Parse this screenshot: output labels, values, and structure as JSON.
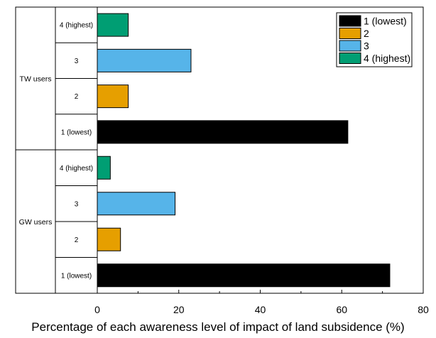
{
  "chart_data": {
    "type": "bar",
    "orientation": "horizontal",
    "title": "",
    "xlabel": "Percentage of each awareness level of impact of land subsidence (%)",
    "ylabel": "",
    "xlim": [
      0,
      80
    ],
    "x_ticks": [
      "0",
      "20",
      "40",
      "60",
      "80"
    ],
    "grid": false,
    "legend_placement": "top-right",
    "categories": [
      "4 (highest)",
      "3",
      "2",
      "1 (lowest)"
    ],
    "groups": [
      {
        "name": "TW users",
        "bars": [
          {
            "category": "4 (highest)",
            "value": 7.6
          },
          {
            "category": "3",
            "value": 23.0
          },
          {
            "category": "2",
            "value": 7.6
          },
          {
            "category": "1 (lowest)",
            "value": 61.5
          }
        ]
      },
      {
        "name": "GW users",
        "bars": [
          {
            "category": "4 (highest)",
            "value": 3.2
          },
          {
            "category": "3",
            "value": 19.1
          },
          {
            "category": "2",
            "value": 5.7
          },
          {
            "category": "1 (lowest)",
            "value": 71.8
          }
        ]
      }
    ],
    "legend": [
      {
        "label": "1 (lowest)",
        "color": "#000000"
      },
      {
        "label": "2",
        "color": "#E69F00"
      },
      {
        "label": "3",
        "color": "#56B4E9"
      },
      {
        "label": "4 (highest)",
        "color": "#009E73"
      }
    ]
  }
}
